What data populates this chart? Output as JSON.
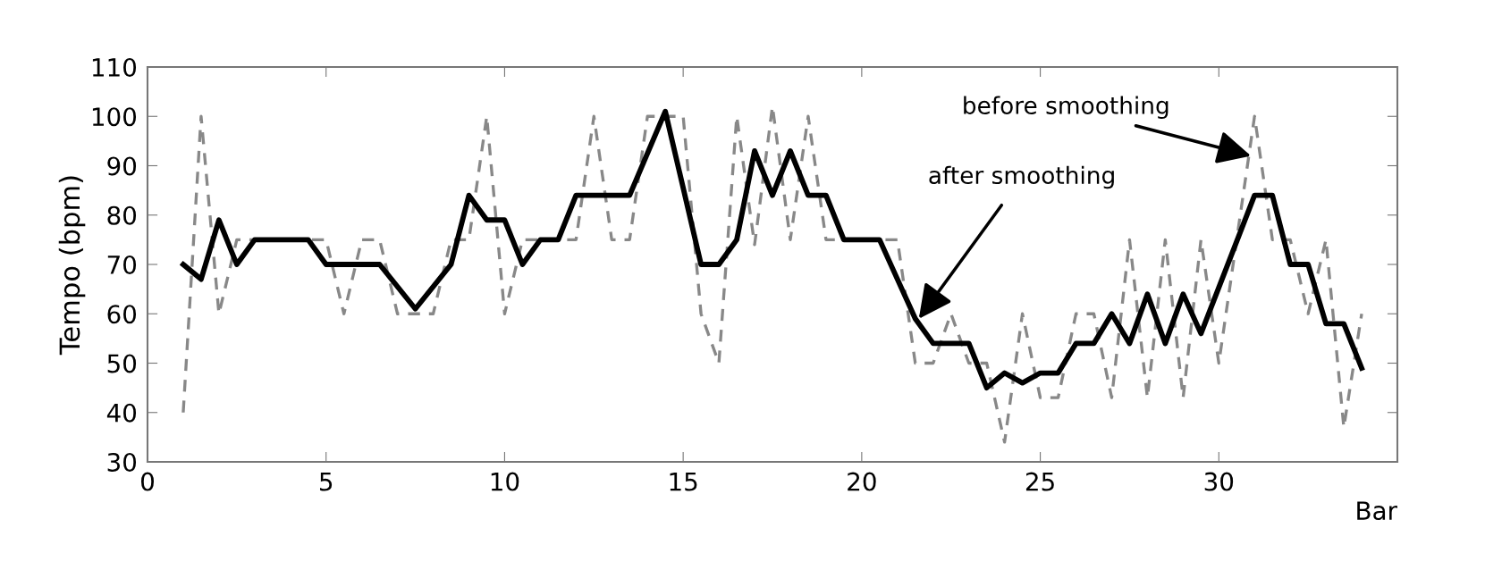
{
  "chart_data": {
    "type": "line",
    "xlabel": "Bar",
    "ylabel": "Tempo (bpm)",
    "xlim": [
      0,
      35
    ],
    "xticks": [
      0,
      5,
      10,
      15,
      20,
      25,
      30
    ],
    "ylim": [
      30,
      110
    ],
    "yticks": [
      30,
      40,
      50,
      60,
      70,
      80,
      90,
      100,
      110
    ],
    "grid": false,
    "marker": "none",
    "series": [
      {
        "color": "#888888",
        "line_style": "dashed",
        "x": [
          1,
          1.5,
          2,
          2.5,
          3,
          3.5,
          4,
          4.5,
          5,
          5.5,
          6,
          6.5,
          7,
          7.5,
          8,
          8.5,
          9,
          9.5,
          10,
          10.5,
          11,
          11.5,
          12,
          12.5,
          13,
          13.5,
          14,
          14.5,
          15,
          15.5,
          16,
          16.5,
          17,
          17.5,
          18,
          18.5,
          19,
          19.5,
          20,
          20.5,
          21,
          21.5,
          22,
          22.5,
          23,
          23.5,
          24,
          24.5,
          25,
          25.5,
          26,
          26.5,
          27,
          27.5,
          28,
          28.5,
          29,
          29.5,
          30,
          30.5,
          31,
          31.5,
          32,
          32.5,
          33,
          33.5,
          34
        ],
        "values": [
          40,
          100,
          60,
          75,
          75,
          75,
          75,
          75,
          75,
          60,
          75,
          75,
          60,
          60,
          60,
          75,
          75,
          100,
          60,
          75,
          75,
          75,
          75,
          100,
          75,
          75,
          100,
          100,
          100,
          60,
          50,
          100,
          74,
          102,
          75,
          100,
          75,
          75,
          75,
          75,
          75,
          50,
          50,
          60,
          50,
          50,
          34,
          60,
          43,
          43,
          60,
          60,
          43,
          75,
          43,
          75,
          43,
          75,
          50,
          75,
          100,
          75,
          75,
          60,
          75,
          37,
          60
        ]
      },
      {
        "color": "#000000",
        "line_style": "solid",
        "x": [
          1,
          1.5,
          2,
          2.5,
          3,
          4.5,
          5,
          6.5,
          7.5,
          8.5,
          9,
          9.5,
          10,
          10.5,
          11,
          11.5,
          12,
          13.5,
          14.5,
          15.5,
          16,
          16.5,
          17,
          17.5,
          18,
          18.5,
          19,
          19.5,
          20.5,
          21.5,
          22,
          23,
          23.5,
          24,
          24.5,
          25,
          25.5,
          26,
          26.5,
          27,
          27.5,
          28,
          28.5,
          29,
          29.5,
          31,
          31.5,
          32,
          32.5,
          33,
          33.5,
          34
        ],
        "values": [
          70,
          67,
          79,
          70,
          75,
          75,
          70,
          70,
          61,
          70,
          84,
          79,
          79,
          70,
          75,
          75,
          84,
          84,
          101,
          70,
          70,
          75,
          93,
          84,
          93,
          84,
          84,
          75,
          75,
          59,
          54,
          54,
          45,
          48,
          46,
          48,
          48,
          54,
          54,
          60,
          54,
          64,
          54,
          64,
          56,
          84,
          84,
          70,
          70,
          58,
          58,
          49
        ]
      }
    ],
    "annotations": [
      {
        "text": "before smoothing",
        "x": 30.9,
        "y": 92
      },
      {
        "text": "after smoothing",
        "x": 21.6,
        "y": 59
      }
    ]
  }
}
